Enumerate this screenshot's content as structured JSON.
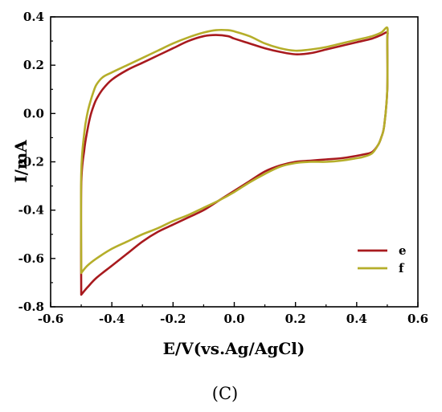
{
  "chart_data": {
    "type": "line",
    "xlabel": "E/V(vs.Ag/AgCl)",
    "ylabel": "I/mA",
    "xlim": [
      -0.6,
      0.6
    ],
    "ylim": [
      -0.8,
      0.4
    ],
    "xticks": [
      "-0.6",
      "-0.4",
      "-0.2",
      "0.0",
      "0.2",
      "0.4",
      "0.6"
    ],
    "yticks": [
      "0.4",
      "0.2",
      "0.0",
      "-0.2",
      "-0.4",
      "-0.6",
      "-0.8"
    ],
    "legend_position": "bottom-right",
    "grid": false,
    "panel_label": "(C)",
    "series": [
      {
        "name": "e",
        "color": "#a81a1e",
        "x": [
          -0.5,
          -0.5,
          -0.49,
          -0.48,
          -0.47,
          -0.46,
          -0.45,
          -0.43,
          -0.4,
          -0.35,
          -0.3,
          -0.25,
          -0.2,
          -0.15,
          -0.1,
          -0.06,
          -0.02,
          0.0,
          0.05,
          0.1,
          0.15,
          0.2,
          0.25,
          0.3,
          0.35,
          0.4,
          0.45,
          0.48,
          0.5,
          0.5,
          0.5,
          0.49,
          0.48,
          0.47,
          0.45,
          0.42,
          0.4,
          0.35,
          0.3,
          0.25,
          0.2,
          0.15,
          0.1,
          0.05,
          0.0,
          -0.05,
          -0.1,
          -0.15,
          -0.2,
          -0.25,
          -0.3,
          -0.35,
          -0.4,
          -0.45,
          -0.48,
          -0.5
        ],
        "y": [
          -0.75,
          -0.3,
          -0.15,
          -0.07,
          -0.01,
          0.03,
          0.06,
          0.1,
          0.14,
          0.18,
          0.21,
          0.24,
          0.27,
          0.3,
          0.32,
          0.325,
          0.32,
          0.31,
          0.29,
          0.27,
          0.255,
          0.245,
          0.25,
          0.265,
          0.28,
          0.295,
          0.31,
          0.325,
          0.335,
          0.3,
          0.1,
          -0.05,
          -0.1,
          -0.13,
          -0.16,
          -0.17,
          -0.175,
          -0.185,
          -0.19,
          -0.195,
          -0.2,
          -0.215,
          -0.24,
          -0.28,
          -0.32,
          -0.36,
          -0.4,
          -0.43,
          -0.46,
          -0.49,
          -0.53,
          -0.58,
          -0.63,
          -0.68,
          -0.72,
          -0.75
        ]
      },
      {
        "name": "f",
        "color": "#b5ae2a",
        "x": [
          -0.5,
          -0.5,
          -0.49,
          -0.48,
          -0.47,
          -0.46,
          -0.45,
          -0.43,
          -0.4,
          -0.35,
          -0.3,
          -0.25,
          -0.2,
          -0.15,
          -0.1,
          -0.06,
          -0.02,
          0.0,
          0.05,
          0.1,
          0.15,
          0.2,
          0.25,
          0.3,
          0.35,
          0.4,
          0.45,
          0.48,
          0.5,
          0.5,
          0.5,
          0.49,
          0.48,
          0.47,
          0.45,
          0.42,
          0.4,
          0.35,
          0.3,
          0.25,
          0.2,
          0.15,
          0.1,
          0.05,
          0.0,
          -0.05,
          -0.1,
          -0.15,
          -0.2,
          -0.25,
          -0.3,
          -0.35,
          -0.4,
          -0.45,
          -0.48,
          -0.5
        ],
        "y": [
          -0.66,
          -0.25,
          -0.08,
          0.0,
          0.05,
          0.09,
          0.12,
          0.15,
          0.17,
          0.2,
          0.23,
          0.26,
          0.29,
          0.315,
          0.335,
          0.345,
          0.345,
          0.34,
          0.32,
          0.29,
          0.27,
          0.26,
          0.265,
          0.275,
          0.29,
          0.305,
          0.32,
          0.335,
          0.355,
          0.3,
          0.1,
          -0.05,
          -0.1,
          -0.13,
          -0.165,
          -0.18,
          -0.185,
          -0.195,
          -0.2,
          -0.2,
          -0.205,
          -0.22,
          -0.25,
          -0.285,
          -0.325,
          -0.36,
          -0.39,
          -0.42,
          -0.445,
          -0.475,
          -0.5,
          -0.53,
          -0.56,
          -0.6,
          -0.63,
          -0.66
        ]
      }
    ]
  }
}
